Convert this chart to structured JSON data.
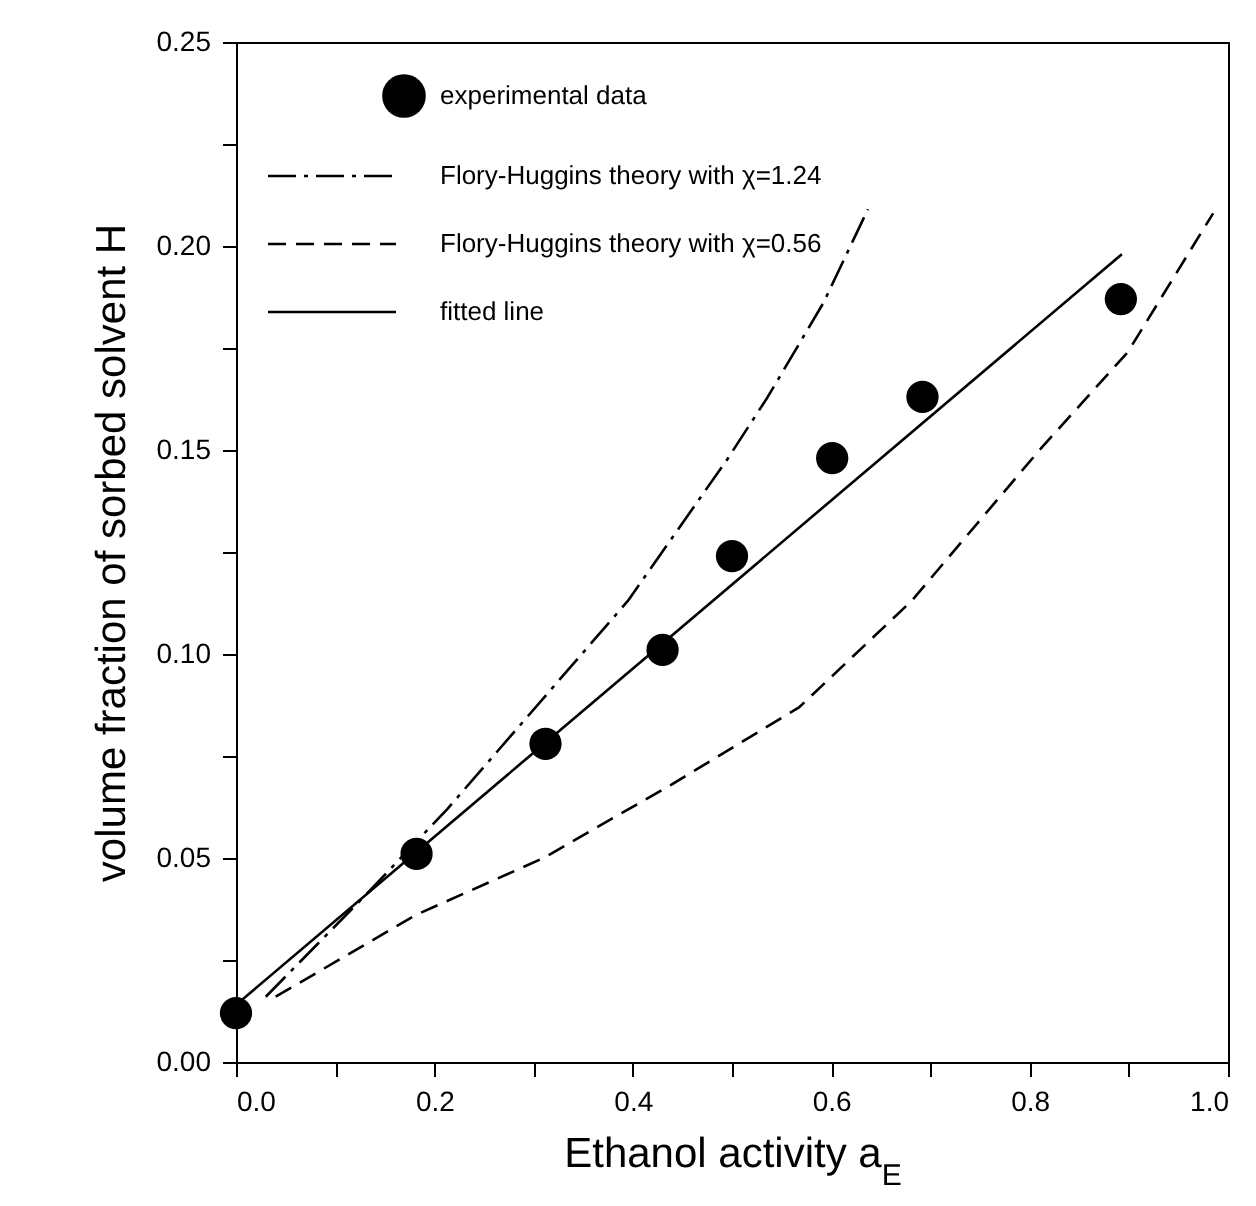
{
  "chart_data": {
    "type": "scatter",
    "xlabel": "Ethanol activity  a$_{E}$",
    "ylabel": "volume fraction of sorbed solvent H",
    "xlim": [
      0,
      1
    ],
    "ylim": [
      0,
      0.25
    ],
    "xticks": [
      {
        "value": 0,
        "label": "0.0"
      },
      {
        "value": 0.1,
        "label": null
      },
      {
        "value": 0.2,
        "label": "0.2"
      },
      {
        "value": 0.3,
        "label": null
      },
      {
        "value": 0.4,
        "label": "0.4"
      },
      {
        "value": 0.5,
        "label": null
      },
      {
        "value": 0.6,
        "label": "0.6"
      },
      {
        "value": 0.7,
        "label": null
      },
      {
        "value": 0.8,
        "label": "0.8"
      },
      {
        "value": 0.9,
        "label": null
      },
      {
        "value": 1,
        "label": "1.0"
      }
    ],
    "yticks": [
      {
        "value": 0,
        "label": "0.00"
      },
      {
        "value": 0.025,
        "label": null
      },
      {
        "value": 0.05,
        "label": "0.05"
      },
      {
        "value": 0.075,
        "label": null
      },
      {
        "value": 0.1,
        "label": "0.10"
      },
      {
        "value": 0.125,
        "label": null
      },
      {
        "value": 0.15,
        "label": "0.15"
      },
      {
        "value": 0.175,
        "label": null
      },
      {
        "value": 0.2,
        "label": "0.20"
      },
      {
        "value": 0.225,
        "label": null
      },
      {
        "value": 0.25,
        "label": "0.25"
      }
    ],
    "grid": false,
    "legend": "top left",
    "series": [
      {
        "name": "experimental data",
        "type": "scatter",
        "marker": "circle",
        "color": "#000000",
        "x": [
          0,
          0.182,
          0.312,
          0.43,
          0.5,
          0.601,
          0.692,
          0.892
        ],
        "values": [
          0.012,
          0.051,
          0.078,
          0.101,
          0.124,
          0.148,
          0.163,
          0.187
        ]
      },
      {
        "name": "Flory-Huggins theory with  χ=1.24",
        "type": "line",
        "line_style": "dashdot",
        "color": "#000000",
        "x": [
          0.03,
          0.131,
          0.213,
          0.395,
          0.496,
          0.536,
          0.592,
          0.637
        ],
        "values": [
          0.016,
          0.041,
          0.062,
          0.113,
          0.148,
          0.163,
          0.186,
          0.209
        ]
      },
      {
        "name": "Flory-Huggins theory with  χ=0.56",
        "type": "line",
        "line_style": "dashed",
        "color": "#000000",
        "x": [
          0.04,
          0.181,
          0.31,
          0.439,
          0.568,
          0.681,
          0.81,
          0.899,
          0.985
        ],
        "values": [
          0.016,
          0.036,
          0.05,
          0.068,
          0.087,
          0.113,
          0.15,
          0.174,
          0.208
        ]
      },
      {
        "name": "fitted line",
        "type": "line",
        "line_style": "solid",
        "color": "#000000",
        "x": [
          0,
          0.893
        ],
        "values": [
          0.014,
          0.198
        ]
      }
    ]
  }
}
